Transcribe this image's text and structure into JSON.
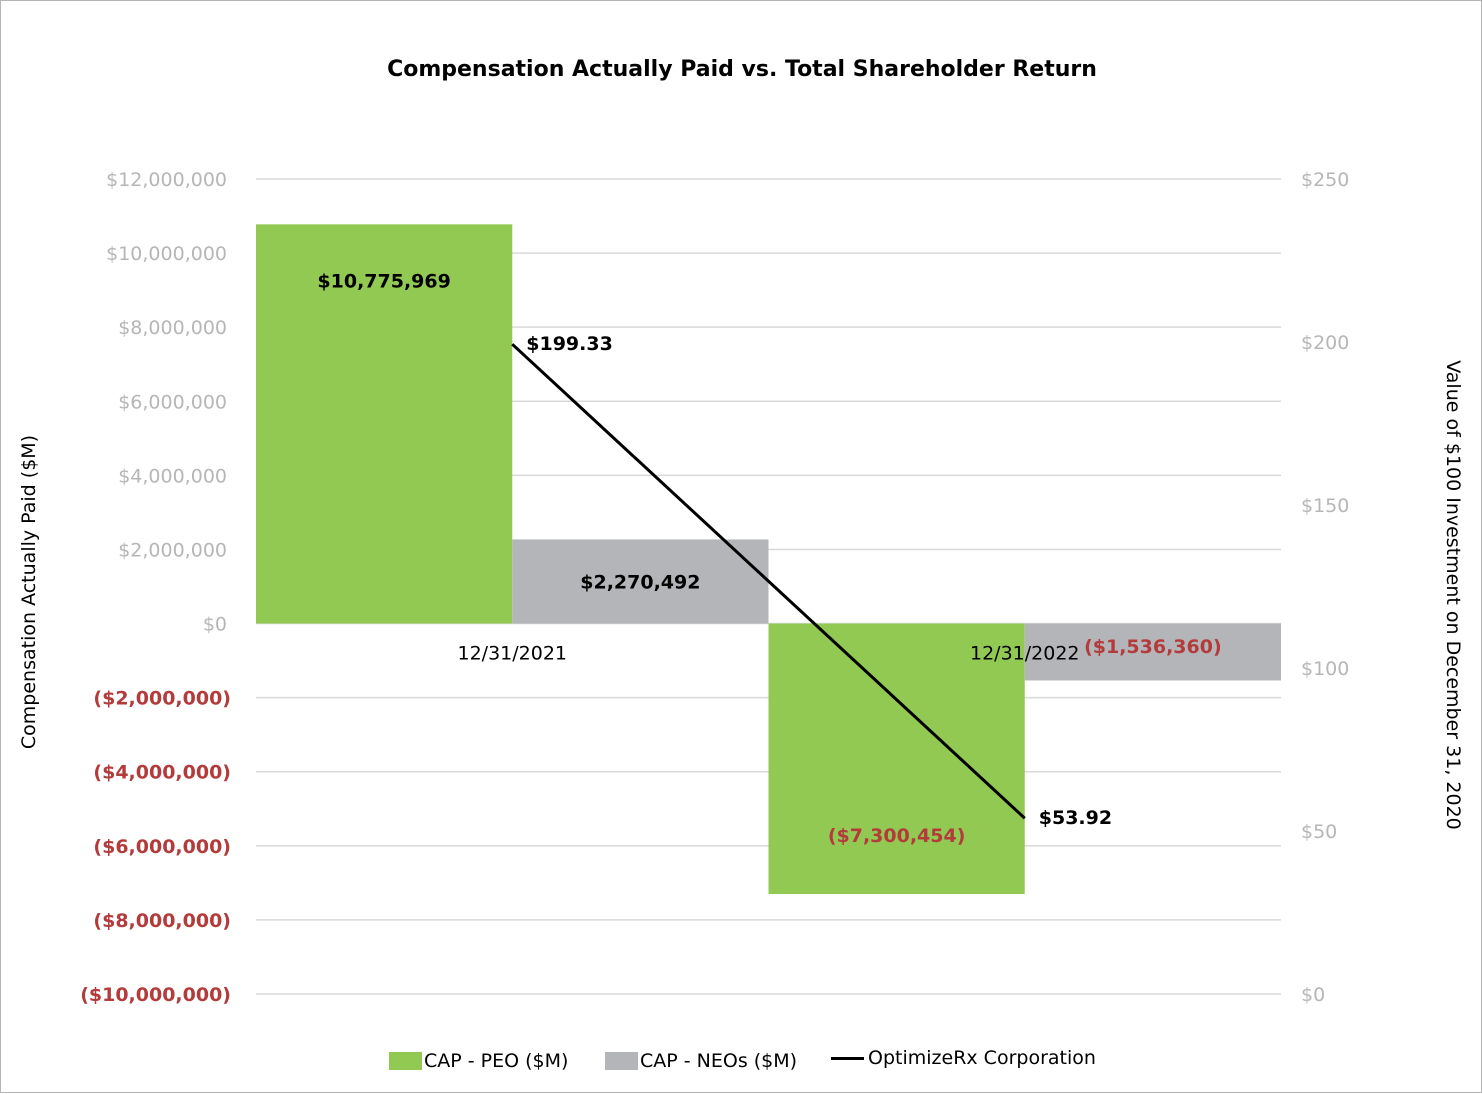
{
  "chart_data": {
    "type": "bar",
    "title": "Compensation Actually Paid vs. Total Shareholder Return",
    "categories": [
      "12/31/2021",
      "12/31/2022"
    ],
    "series": [
      {
        "name": "CAP - PEO ($M)",
        "type": "bar",
        "axis": "left",
        "color": "#92c953",
        "values": [
          10775969,
          -7300454
        ],
        "labels": [
          "$10,775,969",
          "($7,300,454)"
        ]
      },
      {
        "name": "CAP - NEOs ($M)",
        "type": "bar",
        "axis": "left",
        "color": "#b4b5b8",
        "values": [
          2270492,
          -1536360
        ],
        "labels": [
          "$2,270,492",
          "($1,536,360)"
        ]
      },
      {
        "name": "OptimizeRx Corporation",
        "type": "line",
        "axis": "right",
        "color": "#000000",
        "values": [
          199.33,
          53.92
        ],
        "labels": [
          "$199.33",
          "$53.92"
        ]
      }
    ],
    "ylabel": "Compensation Actually Paid ($M)",
    "ylabel_right": "Value of $100 Investment on December 31, 2020",
    "ylim": [
      -10000000,
      12000000
    ],
    "ylim_right": [
      0,
      250
    ],
    "y_ticks": [
      12000000,
      10000000,
      8000000,
      6000000,
      4000000,
      2000000,
      0,
      -2000000,
      -4000000,
      -6000000,
      -8000000,
      -10000000
    ],
    "y_tick_labels": [
      "$12,000,000",
      "$10,000,000",
      "$8,000,000",
      "$6,000,000",
      "$4,000,000",
      "$2,000,000",
      "$0",
      "($2,000,000)",
      "($4,000,000)",
      "($6,000,000)",
      "($8,000,000)",
      "($10,000,000)"
    ],
    "y_ticks_right": [
      250,
      200,
      150,
      100,
      50,
      0
    ],
    "y_tick_labels_right": [
      "$250",
      "$200",
      "$150",
      "$100",
      "$50",
      "$0"
    ],
    "grid": true,
    "legend": "bottom",
    "colors": {
      "positive_tick": "#b6b6b6",
      "negative": "#b33b3b",
      "grid": "#d9d9d9"
    }
  }
}
